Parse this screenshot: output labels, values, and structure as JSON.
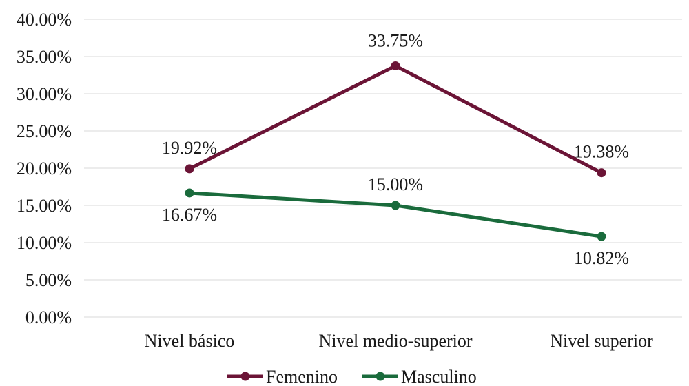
{
  "chart_data": {
    "type": "line",
    "categories": [
      "Nivel básico",
      "Nivel medio-superior",
      "Nivel superior"
    ],
    "series": [
      {
        "name": "Femenino",
        "values": [
          19.92,
          33.75,
          19.38
        ],
        "labels": [
          "19.92%",
          "33.75%",
          "19.38%"
        ],
        "color": "#6b1436"
      },
      {
        "name": "Masculino",
        "values": [
          16.67,
          15.0,
          10.82
        ],
        "labels": [
          "16.67%",
          "15.00%",
          "10.82%"
        ],
        "color": "#1a6b3c"
      }
    ],
    "y_ticks": [
      "0.00%",
      "5.00%",
      "10.00%",
      "15.00%",
      "20.00%",
      "25.00%",
      "30.00%",
      "35.00%",
      "40.00%"
    ],
    "ylim": [
      0,
      40
    ],
    "y_step": 5,
    "grid": true,
    "legend_position": "bottom"
  }
}
